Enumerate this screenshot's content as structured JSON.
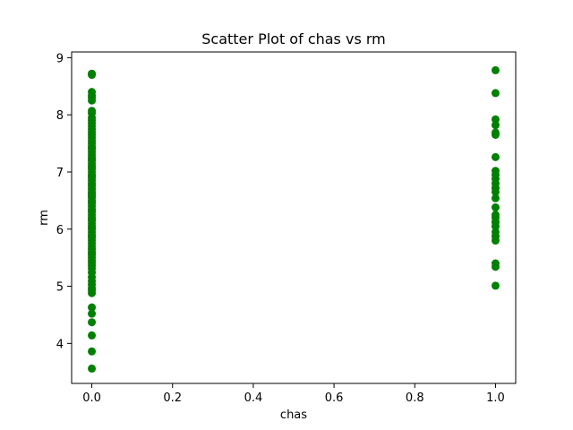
{
  "chart_data": {
    "type": "scatter",
    "title": "Scatter Plot of chas vs rm",
    "xlabel": "chas",
    "ylabel": "rm",
    "xlim": [
      -0.05,
      1.05
    ],
    "ylim": [
      3.3,
      9.1
    ],
    "x_ticks": [
      0.0,
      0.2,
      0.4,
      0.6,
      0.8,
      1.0
    ],
    "x_tick_labels": [
      "0.0",
      "0.2",
      "0.4",
      "0.6",
      "0.8",
      "1.0"
    ],
    "y_ticks": [
      4,
      5,
      6,
      7,
      8,
      9
    ],
    "y_tick_labels": [
      "4",
      "5",
      "6",
      "7",
      "8",
      "9"
    ],
    "grid": false,
    "series": [
      {
        "color": "#008000",
        "x": [
          0,
          0,
          0,
          0,
          0,
          0,
          0,
          0,
          0,
          0,
          0,
          0,
          0,
          0,
          0,
          0,
          0,
          0,
          0,
          0,
          0,
          0,
          0,
          0,
          0,
          0,
          0,
          0,
          0,
          0,
          0,
          0,
          0,
          0,
          0,
          0,
          0,
          0,
          0,
          0,
          0,
          0,
          0,
          0,
          0,
          0,
          0,
          0,
          0,
          0,
          0,
          0,
          0,
          0,
          0,
          0,
          0,
          0,
          0,
          0,
          0,
          0,
          0,
          0,
          0,
          0,
          0,
          0,
          0,
          0,
          0,
          0,
          0,
          0,
          0,
          0,
          0,
          0,
          0,
          0,
          0,
          0,
          0,
          0,
          0,
          0,
          0,
          0,
          1,
          1,
          1,
          1,
          1,
          1,
          1,
          1,
          1,
          1,
          1,
          1,
          1,
          1,
          1,
          1,
          1,
          1,
          1,
          1,
          1,
          1,
          1,
          1,
          1,
          1,
          1,
          1
        ],
        "y": [
          3.56,
          3.86,
          4.14,
          4.37,
          4.52,
          4.63,
          4.88,
          4.93,
          4.97,
          5.03,
          5.09,
          5.16,
          5.24,
          5.31,
          5.36,
          5.41,
          5.45,
          5.5,
          5.55,
          5.6,
          5.65,
          5.7,
          5.75,
          5.8,
          5.85,
          5.9,
          5.95,
          6.0,
          6.05,
          6.1,
          6.15,
          6.2,
          6.25,
          6.3,
          6.35,
          6.4,
          6.45,
          6.5,
          6.55,
          6.6,
          6.65,
          6.7,
          6.75,
          6.8,
          6.85,
          6.9,
          6.95,
          7.0,
          7.05,
          7.1,
          7.15,
          7.2,
          7.25,
          7.3,
          7.35,
          7.4,
          7.45,
          7.5,
          7.55,
          7.6,
          7.65,
          7.7,
          7.75,
          7.8,
          7.85,
          7.9,
          7.95,
          8.03,
          8.07,
          8.25,
          8.3,
          8.34,
          8.4,
          8.7,
          8.72,
          5.88,
          6.02,
          6.18,
          6.33,
          6.48,
          6.62,
          6.78,
          6.92,
          7.08,
          7.22,
          7.42,
          5.58,
          6.58,
          5.01,
          5.34,
          5.4,
          5.8,
          5.88,
          5.95,
          6.05,
          6.12,
          6.2,
          6.25,
          6.38,
          6.65,
          6.72,
          6.8,
          6.88,
          6.95,
          7.02,
          7.26,
          7.65,
          7.69,
          7.82,
          7.92,
          8.38,
          8.78,
          5.87,
          6.13,
          6.54,
          6.72
        ]
      }
    ]
  }
}
